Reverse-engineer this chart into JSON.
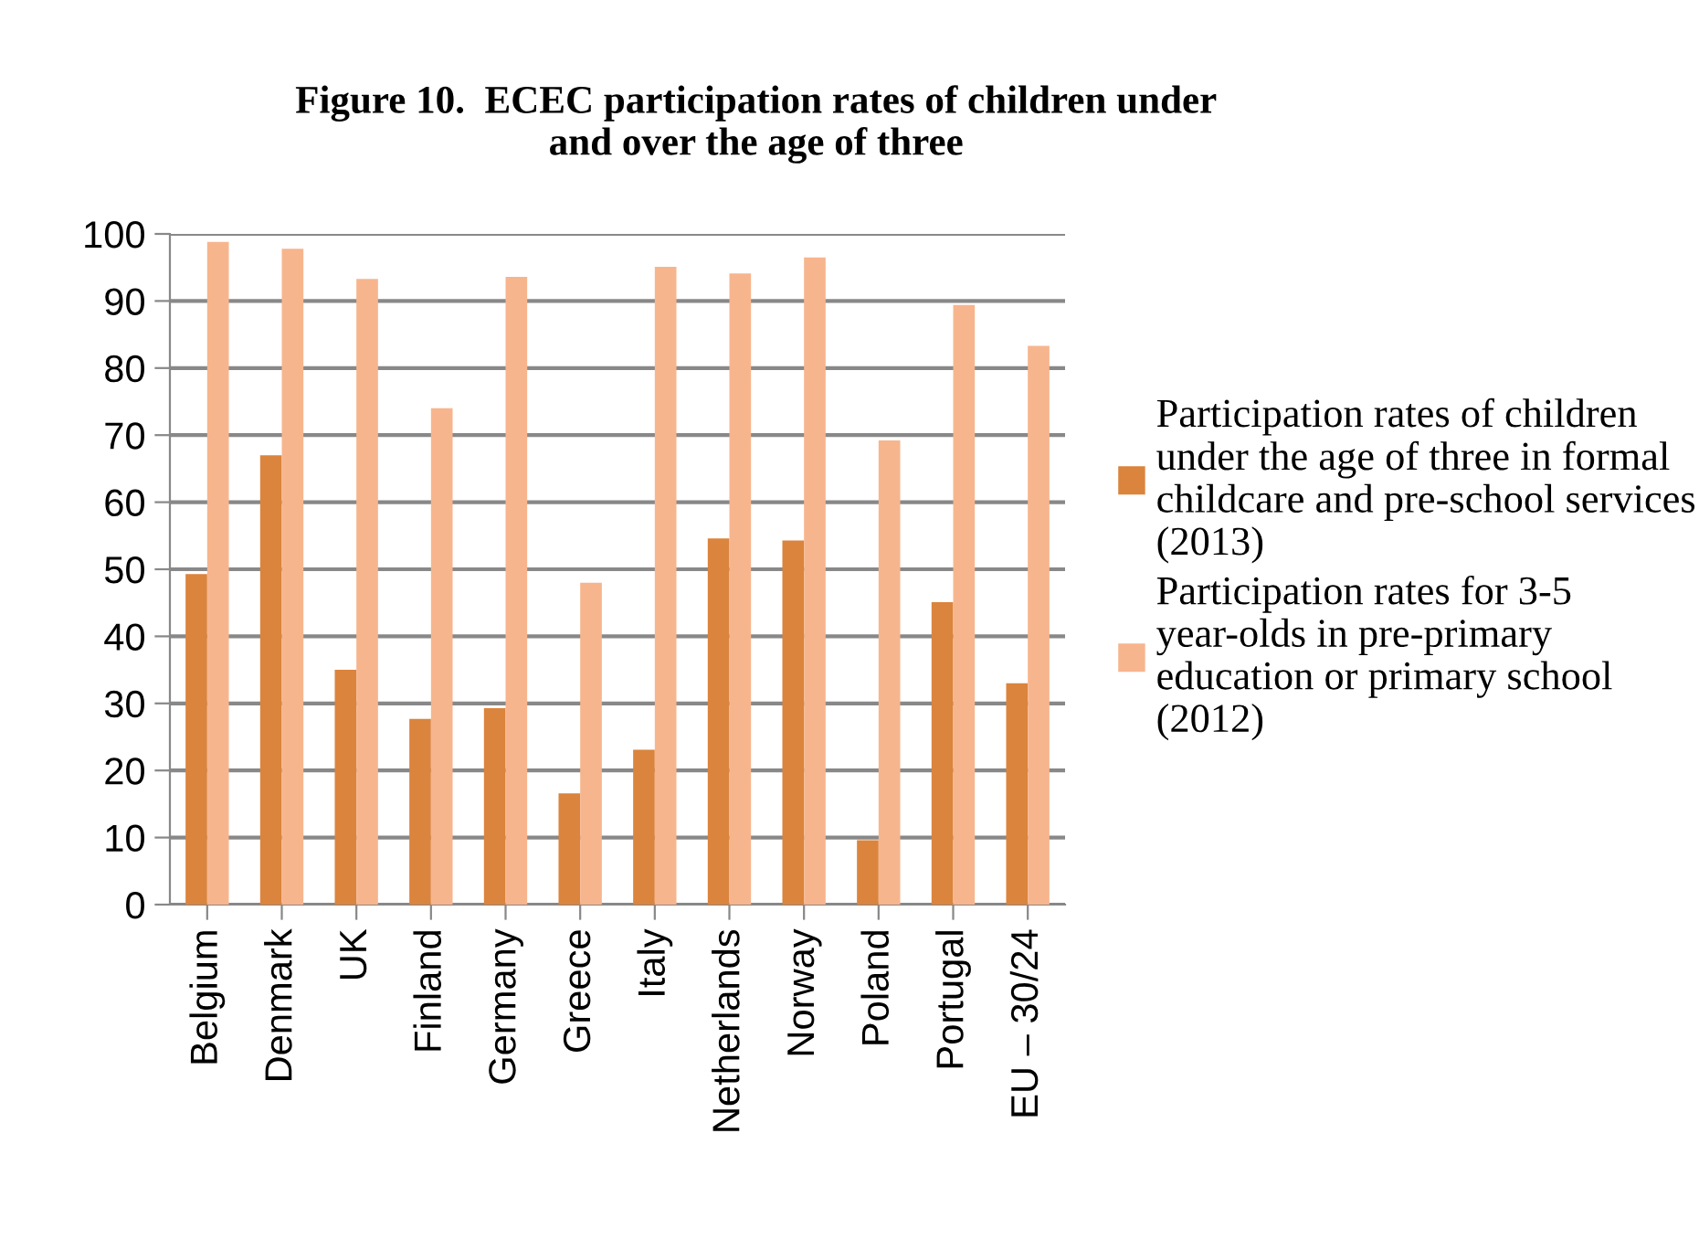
{
  "chart_data": {
    "type": "bar",
    "title": "Figure 10.  ECEC participation rates of children under and over the age of three",
    "categories": [
      "Belgium",
      "Denmark",
      "UK",
      "Finland",
      "Germany",
      "Greece",
      "Italy",
      "Netherlands",
      "Norway",
      "Poland",
      "Portugal",
      "EU – 30/24"
    ],
    "series": [
      {
        "name": "Participation rates of children under the age of three in formal childcare and pre-school services (2013)",
        "color": "#db843d",
        "values": [
          49.3,
          67,
          35,
          27.7,
          29.3,
          16.6,
          23.1,
          54.6,
          54.3,
          9.6,
          45.1,
          33
        ]
      },
      {
        "name": "Participation rates for 3-5 year-olds in pre-primary education or primary school (2012)",
        "color": "#f7b58e",
        "values": [
          98.8,
          97.8,
          93.3,
          74,
          93.6,
          48,
          95.1,
          94.1,
          96.5,
          69.2,
          89.4,
          83.3
        ]
      }
    ],
    "ylim": [
      0,
      100
    ],
    "yticks": [
      0,
      10,
      20,
      30,
      40,
      50,
      60,
      70,
      80,
      90,
      100
    ],
    "grid": "y",
    "legend": "right"
  }
}
